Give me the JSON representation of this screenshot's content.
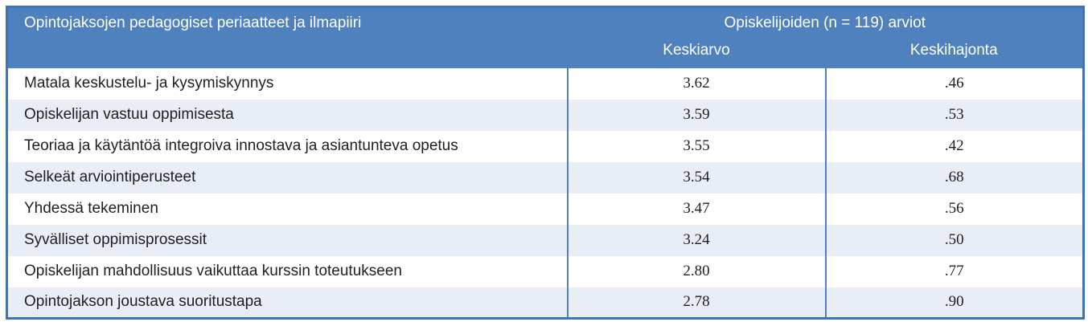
{
  "colors": {
    "header_bg": "#4e81bd",
    "stripe_bg": "#e9edf6",
    "border": "#3c74b4",
    "header_text": "#ffffff",
    "body_text": "#1f1f1f",
    "page_bg": "#ffffff"
  },
  "table": {
    "header": {
      "title_left": "Opintojaksojen pedagogiset periaatteet ja ilmapiiri",
      "title_right": "Opiskelijoiden (n = 119) arviot",
      "col_mean": "Keskiarvo",
      "col_sd": "Keskihajonta"
    },
    "rows": [
      {
        "label": "Matala keskustelu- ja kysymiskynnys",
        "mean": "3.62",
        "sd": ".46"
      },
      {
        "label": "Opiskelijan vastuu oppimisesta",
        "mean": "3.59",
        "sd": ".53"
      },
      {
        "label": "Teoriaa ja käytäntöä integroiva innostava ja asiantunteva opetus",
        "mean": "3.55",
        "sd": ".42"
      },
      {
        "label": "Selkeät arviointiperusteet",
        "mean": "3.54",
        "sd": ".68"
      },
      {
        "label": "Yhdessä tekeminen",
        "mean": "3.47",
        "sd": ".56"
      },
      {
        "label": "Syvälliset oppimisprosessit",
        "mean": "3.24",
        "sd": ".50"
      },
      {
        "label": "Opiskelijan mahdollisuus vaikuttaa kurssin toteutukseen",
        "mean": "2.80",
        "sd": ".77"
      },
      {
        "label": "Opintojakson joustava suoritustapa",
        "mean": "2.78",
        "sd": ".90"
      }
    ]
  },
  "chart_data": {
    "type": "table",
    "title": "Opintojaksojen pedagogiset periaatteet ja ilmapiiri — Opiskelijoiden (n = 119) arviot",
    "columns": [
      "Keskiarvo",
      "Keskihajonta"
    ],
    "categories": [
      "Matala keskustelu- ja kysymiskynnys",
      "Opiskelijan vastuu oppimisesta",
      "Teoriaa ja käytäntöä integroiva innostava ja asiantunteva opetus",
      "Selkeät arviointiperusteet",
      "Yhdessä tekeminen",
      "Syvälliset oppimisprosessit",
      "Opiskelijan mahdollisuus vaikuttaa kurssin toteutukseen",
      "Opintojakson joustava suoritustapa"
    ],
    "series": [
      {
        "name": "Keskiarvo",
        "values": [
          3.62,
          3.59,
          3.55,
          3.54,
          3.47,
          3.24,
          2.8,
          2.78
        ]
      },
      {
        "name": "Keskihajonta",
        "values": [
          0.46,
          0.53,
          0.42,
          0.68,
          0.56,
          0.5,
          0.77,
          0.9
        ]
      }
    ]
  }
}
